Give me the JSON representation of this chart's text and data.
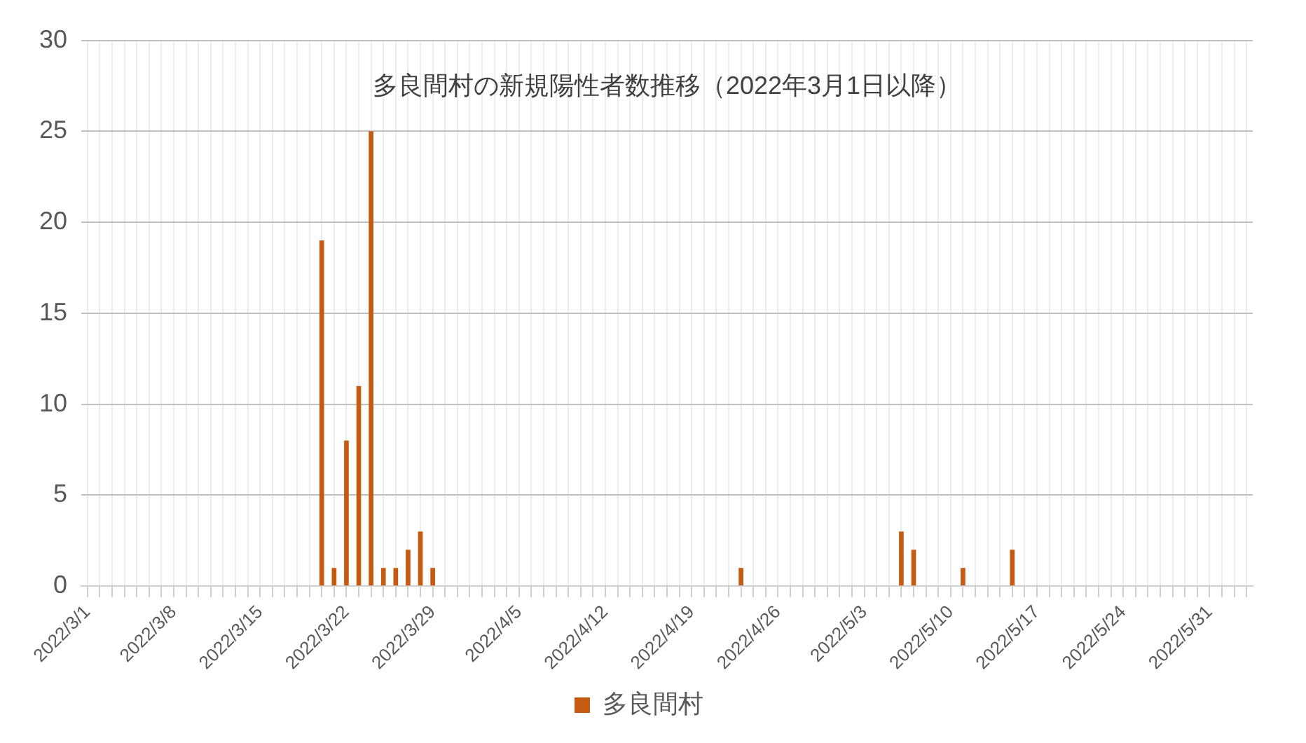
{
  "chart_data": {
    "type": "bar",
    "title": "多良間村の新規陽性者数推移（2022年3月1日以降）",
    "categories": [
      "2022/3/1",
      null,
      null,
      null,
      null,
      null,
      null,
      "2022/3/8",
      null,
      null,
      null,
      null,
      null,
      null,
      "2022/3/15",
      null,
      null,
      null,
      null,
      null,
      null,
      "2022/3/22",
      null,
      null,
      null,
      null,
      null,
      null,
      "2022/3/29",
      null,
      null,
      null,
      null,
      null,
      null,
      "2022/4/5",
      null,
      null,
      null,
      null,
      null,
      null,
      "2022/4/12",
      null,
      null,
      null,
      null,
      null,
      null,
      "2022/4/19",
      null,
      null,
      null,
      null,
      null,
      null,
      "2022/4/26",
      null,
      null,
      null,
      null,
      null,
      null,
      "2022/5/3",
      null,
      null,
      null,
      null,
      null,
      null,
      "2022/5/10",
      null,
      null,
      null,
      null,
      null,
      null,
      "2022/5/17",
      null,
      null,
      null,
      null,
      null,
      null,
      "2022/5/24",
      null,
      null,
      null,
      null,
      null,
      null,
      "2022/5/31",
      null,
      null,
      null
    ],
    "series": [
      {
        "name": "多良間村",
        "color": "#c55a11",
        "values": [
          0,
          0,
          0,
          0,
          0,
          0,
          0,
          0,
          0,
          0,
          0,
          0,
          0,
          0,
          0,
          0,
          0,
          0,
          0,
          19,
          1,
          8,
          11,
          25,
          1,
          1,
          2,
          3,
          1,
          0,
          0,
          0,
          0,
          0,
          0,
          0,
          0,
          0,
          0,
          0,
          0,
          0,
          0,
          0,
          0,
          0,
          0,
          0,
          0,
          0,
          0,
          0,
          0,
          1,
          0,
          0,
          0,
          0,
          0,
          0,
          0,
          0,
          0,
          0,
          0,
          0,
          3,
          2,
          0,
          0,
          0,
          1,
          0,
          0,
          0,
          2,
          0,
          0,
          0,
          0,
          0,
          0,
          0,
          0,
          0,
          0,
          0,
          0,
          0,
          0,
          0,
          0,
          0,
          0,
          0
        ]
      }
    ],
    "ylim": [
      0,
      30
    ],
    "yticks": [
      0,
      5,
      10,
      15,
      20,
      25,
      30
    ],
    "grid": true,
    "legend": "bottom"
  }
}
